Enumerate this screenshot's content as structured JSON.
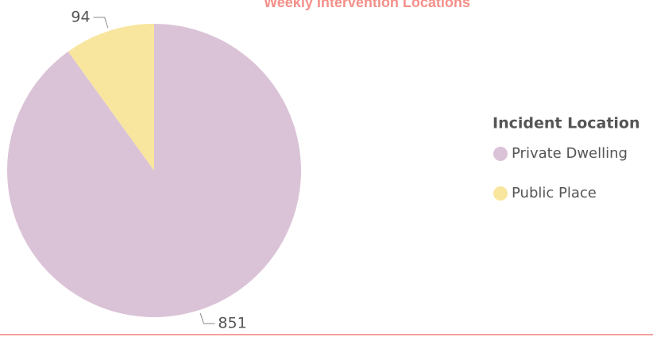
{
  "chart_data": {
    "type": "pie",
    "title": "Weekly Intervention Locations",
    "legend_title": "Incident Location",
    "categories": [
      "Private Dwelling",
      "Public Place"
    ],
    "values": [
      851,
      94
    ],
    "colors": [
      "#dbc3d7",
      "#f8e69f"
    ],
    "legend": "right"
  }
}
